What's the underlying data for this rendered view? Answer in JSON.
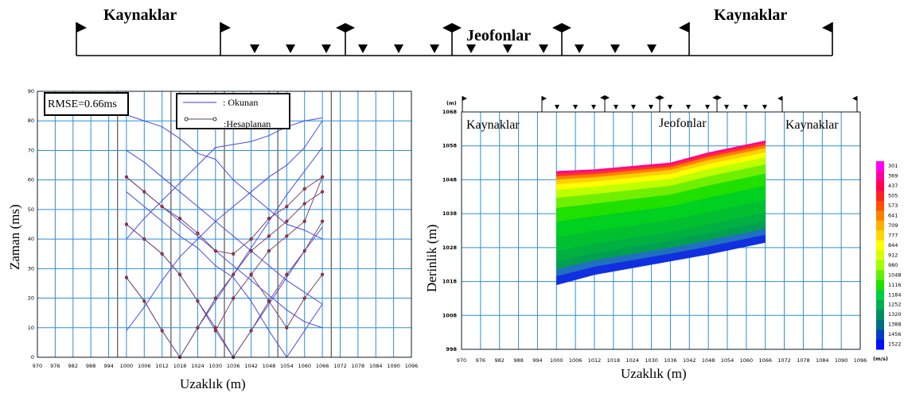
{
  "top_diagram": {
    "sources_left": "Kaynaklar",
    "sources_right": "Kaynaklar",
    "geophones": "Jeofonlar"
  },
  "chart_data": [
    {
      "type": "line",
      "xlabel": "Uzaklık (m)",
      "ylabel": "Zaman (ms)",
      "xlim": [
        970,
        1096
      ],
      "ylim": [
        0,
        90
      ],
      "xticks": [
        970,
        976,
        982,
        988,
        994,
        1000,
        1006,
        1012,
        1018,
        1024,
        1030,
        1036,
        1042,
        1048,
        1054,
        1060,
        1066,
        1072,
        1078,
        1084,
        1090,
        1096
      ],
      "yticks": [
        0,
        10,
        20,
        30,
        40,
        50,
        60,
        70,
        80,
        90
      ],
      "grid": true,
      "annotation": "RMSE=0.66ms",
      "legend": {
        "placement": "top-center",
        "observed": ": Okunan",
        "calculated": ":Hesaplanan"
      },
      "x": [
        1000,
        1006,
        1012,
        1018,
        1024,
        1030,
        1036,
        1042,
        1048,
        1054,
        1060,
        1066
      ],
      "observed": [
        {
          "source": 1000,
          "values": [
            9,
            17,
            26,
            34,
            40,
            46,
            51,
            56,
            61,
            65,
            71,
            80
          ]
        },
        {
          "source": 1015,
          "values": [
            61,
            56,
            51,
            46,
            41,
            36,
            31,
            26,
            21,
            16,
            12,
            10
          ]
        },
        {
          "source": 1033,
          "values": [
            70,
            66,
            61,
            56,
            51,
            46,
            41,
            36,
            31,
            26,
            22,
            18
          ]
        },
        {
          "source": 1051,
          "values": [
            82,
            80,
            78,
            74,
            69,
            67,
            60,
            55,
            50,
            45,
            43,
            40
          ]
        },
        {
          "source": 1015,
          "values": [
            27,
            19,
            9,
            0,
            10,
            19,
            28,
            37,
            46,
            55,
            63,
            71
          ]
        },
        {
          "source": 1033,
          "values": [
            45,
            40,
            35,
            28,
            19,
            9,
            0,
            9,
            18,
            27,
            36,
            44
          ]
        },
        {
          "source": 1051,
          "values": [
            56,
            51,
            46,
            41,
            37,
            31,
            27,
            19,
            9,
            0,
            9,
            18
          ]
        },
        {
          "source": 1068,
          "values": [
            40,
            47,
            53,
            59,
            65,
            71,
            72,
            73,
            75,
            78,
            80,
            81
          ]
        }
      ],
      "calculated": [
        {
          "values": [
            61,
            56,
            51,
            47,
            42,
            36,
            35,
            40,
            47,
            51,
            57,
            61
          ]
        },
        {
          "values": [
            45,
            40,
            35,
            28,
            19,
            10,
            0,
            9,
            19,
            28,
            36,
            46
          ]
        },
        {
          "values": [
            27,
            19,
            9,
            0,
            10,
            20,
            28,
            36,
            41,
            46,
            52,
            56
          ]
        },
        {
          "values": [
            null,
            null,
            null,
            null,
            null,
            9,
            20,
            28,
            36,
            41,
            46,
            61
          ]
        },
        {
          "values": [
            null,
            null,
            null,
            null,
            null,
            null,
            null,
            28,
            19,
            10,
            20,
            28
          ]
        }
      ]
    },
    {
      "type": "heatmap",
      "xlabel": "Uzaklık (m)",
      "ylabel": "Derinlik (m)",
      "xlim": [
        970,
        1096
      ],
      "ylim": [
        998,
        1068
      ],
      "xticks": [
        970,
        976,
        982,
        988,
        994,
        1000,
        1006,
        1012,
        1018,
        1024,
        1030,
        1036,
        1042,
        1048,
        1054,
        1060,
        1066,
        1072,
        1078,
        1084,
        1090,
        1096
      ],
      "yticks": [
        998,
        1008,
        1018,
        1028,
        1038,
        1048,
        1058,
        1068
      ],
      "y_unit": "(m)",
      "grid": true,
      "labels": {
        "sources_left": "Kaynaklar",
        "sources_right": "Kaynaklar",
        "geophones": "Jeofonlar"
      },
      "profile_x": [
        1000,
        1012,
        1024,
        1036,
        1048,
        1066
      ],
      "top_elev": [
        1050.5,
        1051,
        1052,
        1053,
        1056,
        1059.5
      ],
      "bottom_elev": [
        1017,
        1020,
        1022,
        1024,
        1026,
        1029.5
      ],
      "colorbar": {
        "unit": "(m/s)",
        "values": [
          301,
          369,
          437,
          505,
          573,
          641,
          709,
          777,
          844,
          912,
          980,
          1048,
          1116,
          1184,
          1252,
          1320,
          1388,
          1456,
          1522
        ],
        "colors": [
          "#ff00ff",
          "#ff00a0",
          "#ff0050",
          "#ff2020",
          "#ff5000",
          "#ff8000",
          "#ffb000",
          "#ffd800",
          "#ffff00",
          "#d8ff00",
          "#a0ff00",
          "#60f000",
          "#20e000",
          "#00d040",
          "#00b050",
          "#009060",
          "#007080",
          "#0040c0",
          "#0010ff"
        ]
      }
    }
  ]
}
